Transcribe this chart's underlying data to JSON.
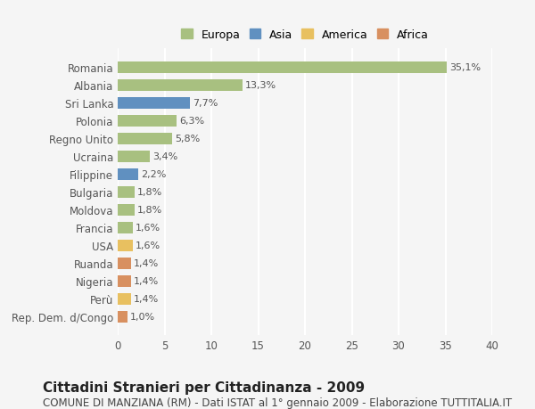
{
  "categories": [
    "Romania",
    "Albania",
    "Sri Lanka",
    "Polonia",
    "Regno Unito",
    "Ucraina",
    "Filippine",
    "Bulgaria",
    "Moldova",
    "Francia",
    "USA",
    "Ruanda",
    "Nigeria",
    "Perù",
    "Rep. Dem. d/Congo"
  ],
  "values": [
    35.1,
    13.3,
    7.7,
    6.3,
    5.8,
    3.4,
    2.2,
    1.8,
    1.8,
    1.6,
    1.6,
    1.4,
    1.4,
    1.4,
    1.0
  ],
  "labels": [
    "35,1%",
    "13,3%",
    "7,7%",
    "6,3%",
    "5,8%",
    "3,4%",
    "2,2%",
    "1,8%",
    "1,8%",
    "1,6%",
    "1,6%",
    "1,4%",
    "1,4%",
    "1,4%",
    "1,0%"
  ],
  "continents": [
    "Europa",
    "Europa",
    "Asia",
    "Europa",
    "Europa",
    "Europa",
    "Asia",
    "Europa",
    "Europa",
    "Europa",
    "America",
    "Africa",
    "Africa",
    "America",
    "Africa"
  ],
  "colors": {
    "Europa": "#a8c080",
    "Asia": "#6090c0",
    "America": "#e8c060",
    "Africa": "#d89060"
  },
  "legend_order": [
    "Europa",
    "Asia",
    "America",
    "Africa"
  ],
  "title": "Cittadini Stranieri per Cittadinanza - 2009",
  "subtitle": "COMUNE DI MANZIANA (RM) - Dati ISTAT al 1° gennaio 2009 - Elaborazione TUTTITALIA.IT",
  "xlim": [
    0,
    40
  ],
  "xticks": [
    0,
    5,
    10,
    15,
    20,
    25,
    30,
    35,
    40
  ],
  "background_color": "#f5f5f5",
  "grid_color": "#ffffff",
  "bar_height": 0.65,
  "title_fontsize": 11,
  "subtitle_fontsize": 8.5,
  "label_fontsize": 8,
  "tick_fontsize": 8.5,
  "legend_fontsize": 9
}
